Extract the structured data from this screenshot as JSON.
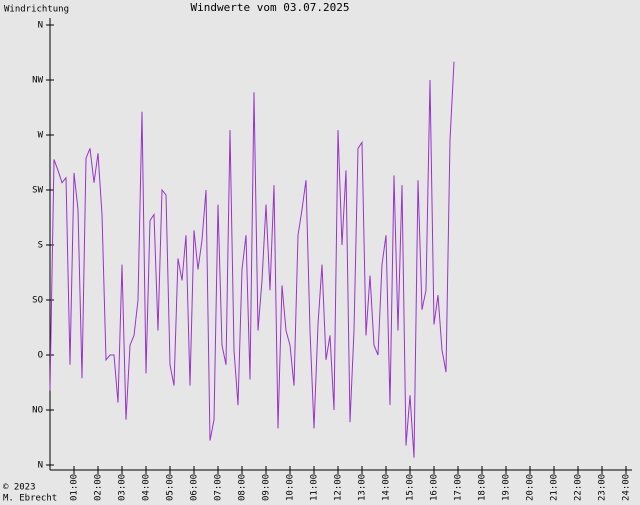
{
  "chart_data": {
    "type": "line",
    "title": "Windwerte vom 03.07.2025",
    "y_label": "Windrichtung",
    "copyright": "© 2023",
    "author": "M. Ebrecht",
    "color": "#9933cc",
    "x": [
      0,
      10,
      20,
      30,
      40,
      50,
      60,
      70,
      80,
      90,
      100,
      110,
      120,
      130,
      140,
      150,
      160,
      170,
      180,
      190,
      200,
      210,
      220,
      230,
      240,
      250,
      260,
      270,
      280,
      290,
      300,
      310,
      320,
      330,
      340,
      350,
      360,
      370,
      380,
      390,
      400,
      410,
      420,
      430,
      440,
      450,
      460,
      470,
      480,
      490,
      500,
      510,
      520,
      530,
      540,
      550,
      560,
      570,
      580,
      590,
      600,
      610,
      620,
      630,
      640,
      650,
      660,
      670,
      680,
      690,
      700,
      710,
      720,
      730,
      740,
      750,
      760,
      770,
      780,
      790,
      800,
      810,
      820,
      830,
      840,
      850,
      860,
      870,
      880,
      890,
      900,
      910,
      920,
      930,
      940,
      950,
      960,
      970,
      980,
      990,
      1000,
      1010
    ],
    "values": [
      61,
      250,
      241,
      231,
      235,
      82,
      239,
      209,
      71,
      251,
      259,
      231,
      255,
      205,
      86,
      90,
      90,
      51,
      164,
      37,
      98,
      106,
      135,
      289,
      75,
      200,
      205,
      110,
      225,
      221,
      82,
      65,
      169,
      151,
      188,
      65,
      192,
      160,
      184,
      225,
      20,
      37,
      213,
      98,
      82,
      274,
      94,
      49,
      160,
      188,
      70,
      305,
      110,
      151,
      213,
      143,
      229,
      30,
      147,
      110,
      98,
      65,
      188,
      209,
      233,
      110,
      30,
      115,
      164,
      86,
      106,
      45,
      274,
      180,
      241,
      35,
      110,
      259,
      264,
      106,
      155,
      98,
      90,
      164,
      188,
      49,
      237,
      110,
      229,
      16,
      57,
      6,
      233,
      127,
      143,
      315,
      115,
      139,
      94,
      76,
      266,
      330
    ],
    "xlim": [
      0,
      1440
    ],
    "xticks": [
      {
        "value": 60,
        "label": "01:00"
      },
      {
        "value": 120,
        "label": "02:00"
      },
      {
        "value": 180,
        "label": "03:00"
      },
      {
        "value": 240,
        "label": "04:00"
      },
      {
        "value": 300,
        "label": "05:00"
      },
      {
        "value": 360,
        "label": "06:00"
      },
      {
        "value": 420,
        "label": "07:00"
      },
      {
        "value": 480,
        "label": "08:00"
      },
      {
        "value": 540,
        "label": "09:00"
      },
      {
        "value": 600,
        "label": "10:00"
      },
      {
        "value": 660,
        "label": "11:00"
      },
      {
        "value": 720,
        "label": "12:00"
      },
      {
        "value": 780,
        "label": "13:00"
      },
      {
        "value": 840,
        "label": "14:00"
      },
      {
        "value": 900,
        "label": "15:00"
      },
      {
        "value": 960,
        "label": "16:00"
      },
      {
        "value": 1020,
        "label": "17:00"
      },
      {
        "value": 1080,
        "label": "18:00"
      },
      {
        "value": 1140,
        "label": "19:00"
      },
      {
        "value": 1200,
        "label": "20:00"
      },
      {
        "value": 1260,
        "label": "21:00"
      },
      {
        "value": 1320,
        "label": "22:00"
      },
      {
        "value": 1380,
        "label": "23:00"
      },
      {
        "value": 1440,
        "label": "24:00"
      }
    ],
    "ylim": [
      0,
      360
    ],
    "yticks": [
      {
        "value": 0,
        "label": "N"
      },
      {
        "value": 45,
        "label": "NO"
      },
      {
        "value": 90,
        "label": "O"
      },
      {
        "value": 135,
        "label": "SO"
      },
      {
        "value": 180,
        "label": "S"
      },
      {
        "value": 225,
        "label": "SW"
      },
      {
        "value": 270,
        "label": "W"
      },
      {
        "value": 315,
        "label": "NW"
      },
      {
        "value": 360,
        "label": "N"
      }
    ]
  }
}
